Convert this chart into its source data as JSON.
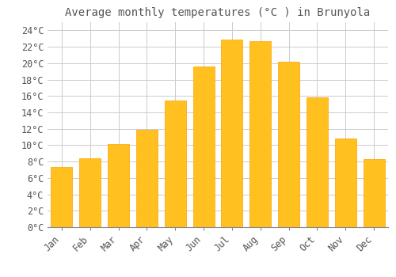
{
  "title": "Average monthly temperatures (°C ) in Brunyola",
  "months": [
    "Jan",
    "Feb",
    "Mar",
    "Apr",
    "May",
    "Jun",
    "Jul",
    "Aug",
    "Sep",
    "Oct",
    "Nov",
    "Dec"
  ],
  "values": [
    7.3,
    8.4,
    10.1,
    11.9,
    15.4,
    19.6,
    22.9,
    22.7,
    20.2,
    15.8,
    10.8,
    8.3
  ],
  "bar_color": "#FFC020",
  "bar_edge_color": "#FFA000",
  "background_color": "#FFFFFF",
  "grid_color": "#CCCCCC",
  "text_color": "#555555",
  "ylim": [
    0,
    25
  ],
  "yticks": [
    0,
    2,
    4,
    6,
    8,
    10,
    12,
    14,
    16,
    18,
    20,
    22,
    24
  ],
  "title_fontsize": 10,
  "tick_fontsize": 8.5
}
